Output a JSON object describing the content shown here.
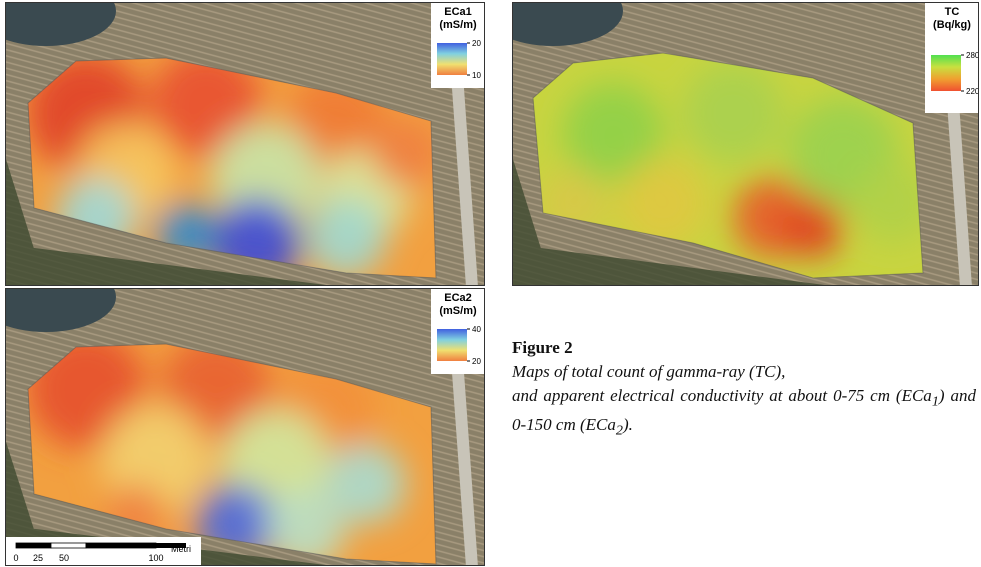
{
  "panels": [
    {
      "legend": {
        "title": "ECa1",
        "unit": "(mS/m)",
        "ticks": [
          20,
          10
        ]
      }
    },
    {
      "legend": {
        "title": "ECa2",
        "unit": "(mS/m)",
        "ticks": [
          40,
          20
        ]
      },
      "scale_bar": {
        "labels": [
          "0",
          "25",
          "50",
          "100"
        ],
        "unit": "Metri"
      }
    },
    {
      "legend": {
        "title": "TC",
        "unit": "(Bq/kg)",
        "ticks": [
          280,
          220
        ]
      }
    }
  ],
  "caption": {
    "label": "Figure 2",
    "parts": [
      "Maps of total count of gamma-ray (TC),",
      "and apparent electrical conductivity at about 0-75 cm (ECa",
      "1",
      ") and 0-150 cm (ECa",
      "2",
      ")."
    ]
  }
}
